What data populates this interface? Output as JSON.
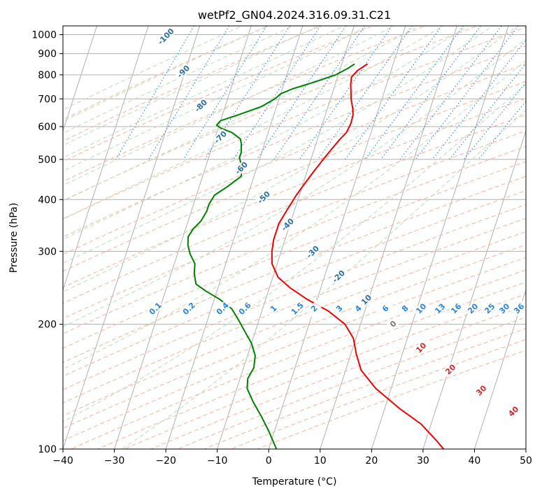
{
  "chart_data": {
    "type": "line",
    "subtype": "skew-T log-P diagram",
    "title": "wetPf2_GN04.2024.316.09.31.C21",
    "xlabel": "Temperature (°C)",
    "ylabel": "Pressure (hPa)",
    "xlim": [
      -40,
      50
    ],
    "ylim": [
      1050,
      100
    ],
    "y_scale": "log",
    "x_ticks": [
      -40,
      -30,
      -20,
      -10,
      0,
      10,
      20,
      30,
      40,
      50
    ],
    "y_ticks": [
      100,
      200,
      300,
      400,
      500,
      600,
      700,
      800,
      900,
      1000
    ],
    "grid": true,
    "series": [
      {
        "color": "#ee0000",
        "points": [
          [
            -5.0,
            850
          ],
          [
            -6.5,
            820
          ],
          [
            -7.3,
            790
          ],
          [
            -7.0,
            760
          ],
          [
            -6.5,
            730
          ],
          [
            -6.0,
            700
          ],
          [
            -5.5,
            680
          ],
          [
            -5.0,
            660
          ],
          [
            -4.6,
            640
          ],
          [
            -4.5,
            610
          ],
          [
            -4.8,
            580
          ],
          [
            -5.6,
            560
          ],
          [
            -6.6,
            530
          ],
          [
            -7.6,
            500
          ],
          [
            -8.6,
            470
          ],
          [
            -9.6,
            440
          ],
          [
            -10.6,
            410
          ],
          [
            -11.4,
            380
          ],
          [
            -12.2,
            350
          ],
          [
            -12.2,
            320
          ],
          [
            -11.8,
            300
          ],
          [
            -11.0,
            280
          ],
          [
            -9.0,
            260
          ],
          [
            -6.0,
            245
          ],
          [
            -2.0,
            230
          ],
          [
            3.0,
            215
          ],
          [
            7.0,
            200
          ],
          [
            9.5,
            185
          ],
          [
            11.0,
            170
          ],
          [
            13.0,
            155
          ],
          [
            17.0,
            140
          ],
          [
            23.0,
            125
          ],
          [
            28.0,
            115
          ],
          [
            32.0,
            105
          ],
          [
            34.0,
            100
          ]
        ]
      },
      {
        "color": "#008000",
        "points": [
          [
            -7.5,
            850
          ],
          [
            -8.5,
            830
          ],
          [
            -10.5,
            800
          ],
          [
            -14.0,
            770
          ],
          [
            -18.0,
            740
          ],
          [
            -20.0,
            720
          ],
          [
            -20.8,
            700
          ],
          [
            -23.0,
            670
          ],
          [
            -27.0,
            640
          ],
          [
            -30.0,
            620
          ],
          [
            -30.5,
            605
          ],
          [
            -29.5,
            595
          ],
          [
            -27.0,
            580
          ],
          [
            -25.0,
            560
          ],
          [
            -24.5,
            545
          ],
          [
            -24.0,
            520
          ],
          [
            -24.0,
            505
          ],
          [
            -23.0,
            480
          ],
          [
            -22.5,
            455
          ],
          [
            -24.5,
            430
          ],
          [
            -26.5,
            410
          ],
          [
            -27.0,
            390
          ],
          [
            -27.0,
            375
          ],
          [
            -27.5,
            355
          ],
          [
            -28.5,
            340
          ],
          [
            -29.0,
            325
          ],
          [
            -28.5,
            310
          ],
          [
            -27.5,
            295
          ],
          [
            -26.0,
            280
          ],
          [
            -25.5,
            265
          ],
          [
            -24.5,
            250
          ],
          [
            -22.0,
            240
          ],
          [
            -19.0,
            230
          ],
          [
            -16.0,
            218
          ],
          [
            -14.0,
            205
          ],
          [
            -12.0,
            192
          ],
          [
            -10.0,
            180
          ],
          [
            -8.5,
            168
          ],
          [
            -8.0,
            157
          ],
          [
            -8.5,
            148
          ],
          [
            -8.0,
            140
          ],
          [
            -6.0,
            130
          ],
          [
            -3.5,
            120
          ],
          [
            -1.0,
            110
          ],
          [
            1.5,
            100
          ]
        ]
      }
    ],
    "dry_adiabat_labels": [
      "-100",
      "-90",
      "-80",
      "-70",
      "-60",
      "-50",
      "-40",
      "-30",
      "-20",
      "-10",
      "0",
      "10",
      "20",
      "30",
      "40"
    ],
    "mixing_ratio_labels": [
      "0.1",
      "0.2",
      "0.4",
      "0.6",
      "1",
      "1.5",
      "2",
      "3",
      "4",
      "6",
      "8",
      "10",
      "13",
      "16",
      "20",
      "25",
      "30",
      "36"
    ]
  }
}
